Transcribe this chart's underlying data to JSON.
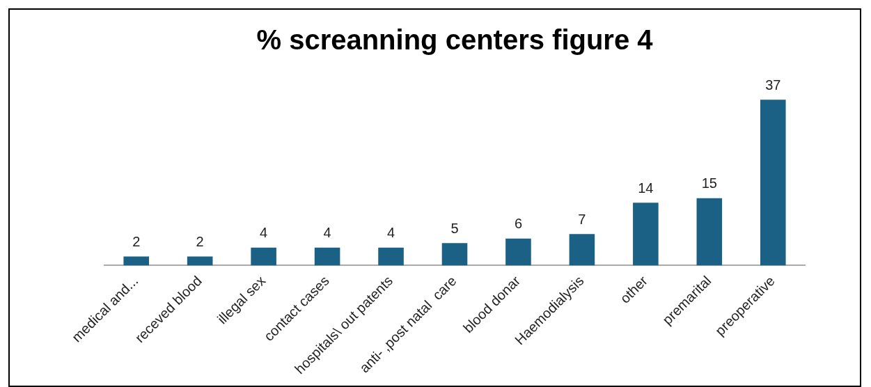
{
  "chart_data": {
    "type": "bar",
    "title": "% screanning centers figure 4",
    "categories": [
      "medical and...",
      "receved blood",
      "illegal sex",
      "contact cases",
      "hospitals\\ out patents",
      "anti- ,post natal  care",
      "blood donar",
      "Haemodialysis",
      "other",
      "premarital",
      "preoperative"
    ],
    "values": [
      2,
      2,
      4,
      4,
      4,
      5,
      6,
      7,
      14,
      15,
      37
    ],
    "color": "#1a6185",
    "data_labels": true,
    "grid": false,
    "legend": false,
    "tick_labels": "x"
  }
}
